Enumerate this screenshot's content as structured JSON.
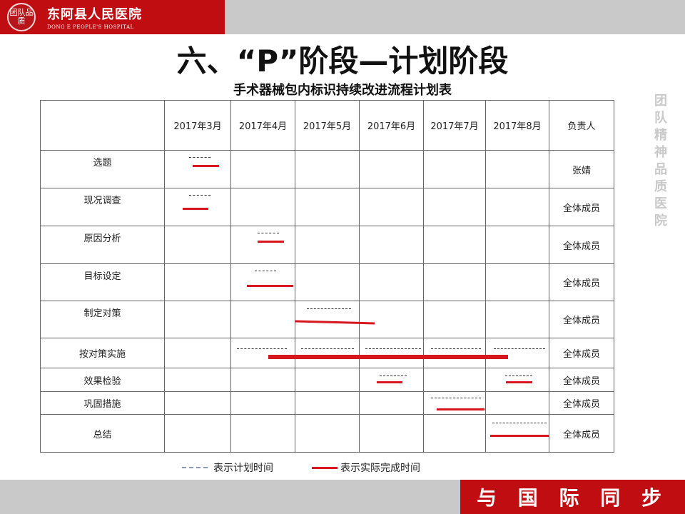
{
  "header": {
    "hospital_cn": "东阿县人民医院",
    "hospital_en": "DONG E PEOPLE'S HOSPITAL",
    "logo_text": "团队品质"
  },
  "title": "六、“P”阶段—计划阶段",
  "subtitle": "手术器械包内标识持续改进流程计划表",
  "side_slogan": "团队精神 品质医院",
  "table": {
    "columns": [
      "",
      "2017年3月",
      "2017年4月",
      "2017年5月",
      "2017年6月",
      "2017年7月",
      "2017年8月",
      "负责人"
    ],
    "rows": [
      {
        "task": "选题",
        "owner": "张婧"
      },
      {
        "task": "现况调查",
        "owner": "全体成员"
      },
      {
        "task": "原因分析",
        "owner": "全体成员"
      },
      {
        "task": "目标设定",
        "owner": "全体成员"
      },
      {
        "task": "制定对策",
        "owner": "全体成员"
      },
      {
        "task": "按对策实施",
        "owner": "全体成员"
      },
      {
        "task": "效果检验",
        "owner": "全体成员"
      },
      {
        "task": "巩固措施",
        "owner": "全体成员"
      },
      {
        "task": "总结",
        "owner": "全体成员"
      }
    ]
  },
  "legend": {
    "plan": "表示计划时间",
    "actual": "表示实际完成时间"
  },
  "colors": {
    "brand_red": "#c00d12",
    "actual_line": "#d6181e",
    "plan_line": "#333333",
    "band_gray": "#c9c9c9"
  },
  "footer": {
    "motto": "与 国 际 同 步"
  }
}
